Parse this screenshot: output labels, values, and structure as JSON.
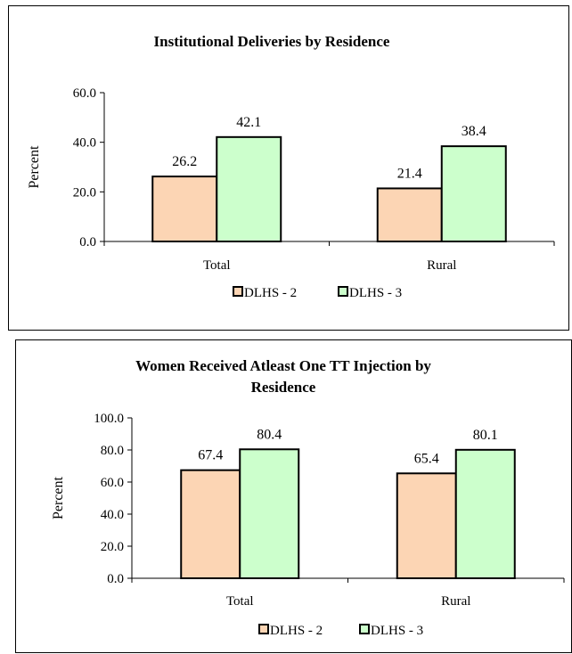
{
  "chart_data": [
    {
      "type": "bar",
      "title": "Institutional Deliveries by Residence",
      "ylabel": "Percent",
      "xlabel": "",
      "categories": [
        "Total",
        "Rural"
      ],
      "series": [
        {
          "name": "DLHS - 2",
          "values": [
            26.2,
            21.4
          ],
          "color": "#fcd5b4"
        },
        {
          "name": "DLHS - 3",
          "values": [
            42.1,
            38.4
          ],
          "color": "#ccffcc"
        }
      ],
      "yticks": [
        "0.0",
        "20.0",
        "40.0",
        "60.0"
      ],
      "ylim": [
        0,
        60
      ],
      "legend": "bottom",
      "grid": false
    },
    {
      "type": "bar",
      "title": "Women Received Atleast One TT Injection by Residence",
      "title_lines": [
        "Women Received Atleast One TT Injection by",
        "Residence"
      ],
      "ylabel": "Percent",
      "xlabel": "",
      "categories": [
        "Total",
        "Rural"
      ],
      "series": [
        {
          "name": "DLHS - 2",
          "values": [
            67.4,
            65.4
          ],
          "color": "#fcd5b4"
        },
        {
          "name": "DLHS - 3",
          "values": [
            80.4,
            80.1
          ],
          "color": "#ccffcc"
        }
      ],
      "yticks": [
        "0.0",
        "20.0",
        "40.0",
        "60.0",
        "80.0",
        "100.0"
      ],
      "ylim": [
        0,
        100
      ],
      "legend": "bottom",
      "grid": false
    }
  ]
}
